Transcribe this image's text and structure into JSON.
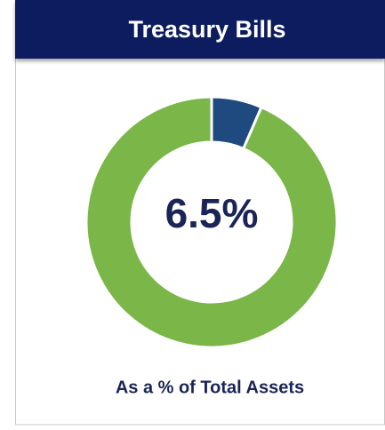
{
  "chart_data": {
    "type": "donut",
    "title": "Treasury Bills",
    "subtitle": "As a % of Total Assets",
    "values": [
      6.5,
      93.5
    ],
    "value_labels": [
      "6.5%",
      null
    ],
    "colors": [
      "#1f4a80",
      "#7ab648"
    ]
  }
}
